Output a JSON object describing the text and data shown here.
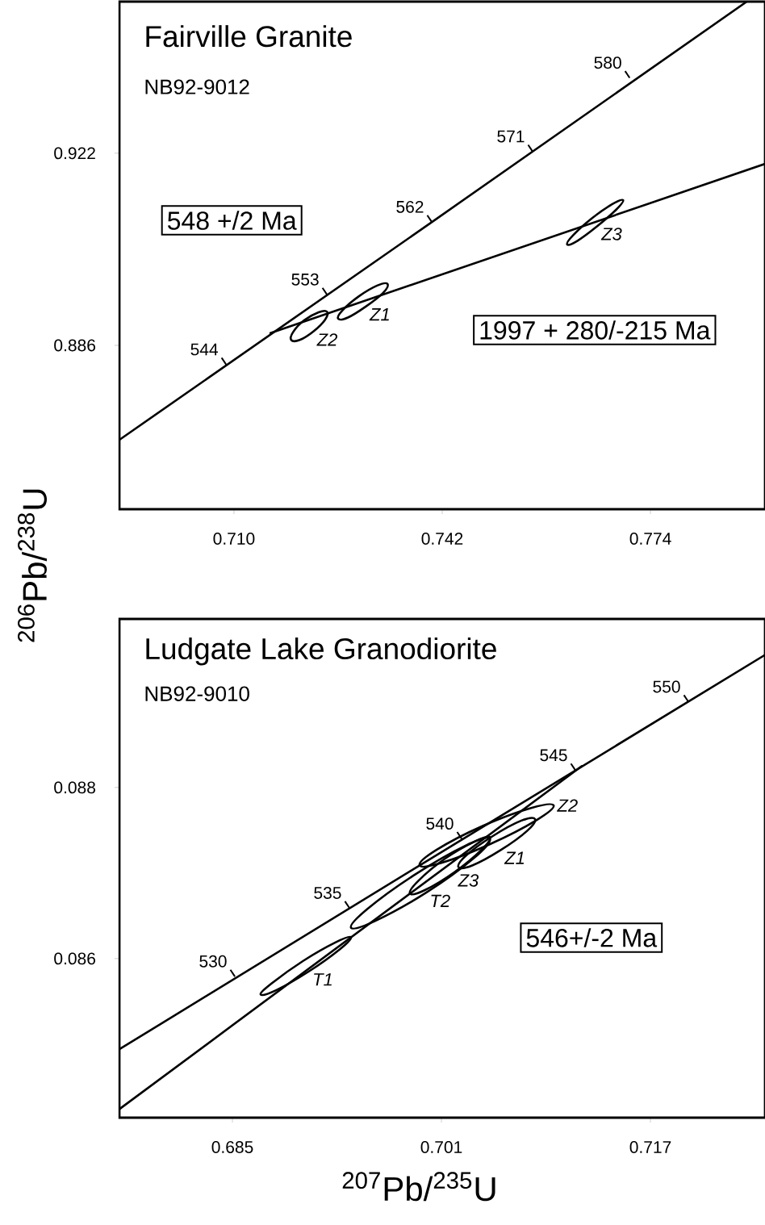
{
  "chart_data": [
    {
      "type": "line",
      "title": "Fairville  Granite",
      "subtitle": "NB92-9012",
      "ylabel": "$^{206}$Pb/$^{238}$U",
      "xlim": [
        0.6924,
        0.7916
      ],
      "ylim": [
        0.8553,
        0.9504
      ],
      "xticks": [
        {
          "value": 0.71,
          "label": "0.710"
        },
        0.742,
        0.774
      ],
      "yticks": [
        0.886,
        0.922
      ],
      "series": [
        {
          "color": "#000000",
          "x": [
            0.6924,
            0.741,
            0.7888
          ],
          "values": [
            0.8683,
            0.9096,
            0.9504
          ]
        },
        {
          "color": "#000000",
          "x": [
            0.7156,
            0.7916
          ],
          "values": [
            0.8883,
            0.92
          ]
        }
      ],
      "annotations": [
        {
          "text": "544",
          "x": 0.7088,
          "y": 0.8824
        },
        {
          "text": "553",
          "x": 0.7243,
          "y": 0.8955
        },
        {
          "text": "562",
          "x": 0.7404,
          "y": 0.9091
        },
        {
          "text": "571",
          "x": 0.7559,
          "y": 0.9223
        },
        {
          "text": "580",
          "x": 0.7708,
          "y": 0.9361
        },
        "Z1",
        "Z2",
        "Z3",
        "548 +/2  Ma",
        "1997 + 280/-215  Ma"
      ]
    },
    {
      "type": "line",
      "title": "Ludgate  Lake  Granodiorite",
      "subtitle": "NB92-9010",
      "xlabel": "$^{207}$Pb/$^{235}$U",
      "xlim": [
        0.67635,
        0.72577
      ],
      "ylim": [
        0.08414,
        0.08997
      ],
      "xticks": [
        0.685,
        0.701,
        0.717
      ],
      "yticks": [
        0.086,
        0.088
      ],
      "series": [
        {
          "color": "#000000",
          "x": [
            0.67635,
            0.70106,
            0.72577
          ],
          "values": [
            0.08494,
            0.08725,
            0.08955
          ]
        },
        {
          "color": "#000000",
          "x": [
            0.67635,
            0.71175
          ],
          "values": [
            0.08424,
            0.08825
          ]
        }
      ],
      "annotations": [
        {
          "text": "530",
          "x": 0.68519,
          "y": 0.08579
        },
        {
          "text": "535",
          "x": 0.69396,
          "y": 0.08659
        },
        {
          "text": "540",
          "x": 0.70255,
          "y": 0.0874
        },
        {
          "text": "545",
          "x": 0.71126,
          "y": 0.0882
        },
        {
          "text": "550",
          "x": 0.71991,
          "y": 0.089
        },
        "T1",
        "T2",
        "Z3",
        "Z1",
        "Z2",
        "546+/-2  Ma"
      ]
    }
  ]
}
